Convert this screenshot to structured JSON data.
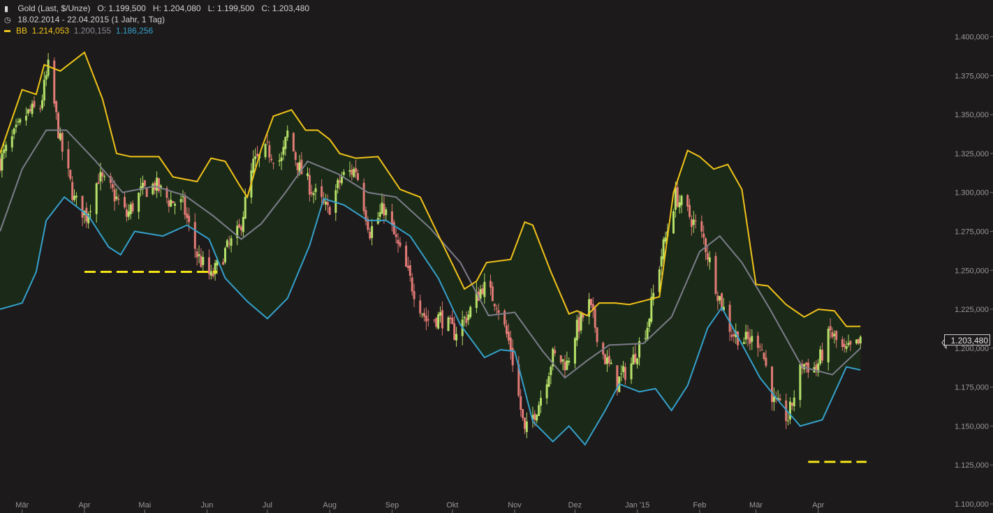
{
  "header": {
    "icon": "bar-chart-icon",
    "instrument": "Gold (Last, $/Unze)",
    "o_label": "O:",
    "o": "1.199,500",
    "h_label": "H:",
    "h": "1.204,080",
    "l_label": "L:",
    "l": "1.199,500",
    "c_label": "C:",
    "c": "1.203,480",
    "range_icon": "clock-icon",
    "range": "18.02.2014 - 22.04.2015 (1 Jahr, 1 Tag)",
    "bb_label": "BB",
    "bb_upper": "1.214,053",
    "bb_mid": "1.200,155",
    "bb_lower": "1.186,256"
  },
  "price_tag": "1.203,480",
  "colors": {
    "background": "#1c1a1a",
    "band_fill": "#1b2a18",
    "upper_band": "#f2c31a",
    "middle_band": "#7c7c8a",
    "lower_band": "#35a0cc",
    "up_candle": "#b6e068",
    "down_candle": "#e27a76",
    "dashed_level": "#f4e415"
  },
  "chart_data": {
    "type": "candlestick",
    "y_axis": {
      "side": "right",
      "ylim": [
        1100000,
        1407000
      ],
      "ticks": [
        1400000,
        1375000,
        1350000,
        1325000,
        1300000,
        1275000,
        1250000,
        1225000,
        1200000,
        1175000,
        1150000,
        1125000,
        1100000
      ],
      "tick_labels": [
        "1.400,000",
        "1.375,000",
        "1.350,000",
        "1.325,000",
        "1.300,000",
        "1.275,000",
        "1.250,000",
        "1.225,000",
        "1.200,000",
        "1.175,000",
        "1.150,000",
        "1.125,000",
        "1.100,000"
      ]
    },
    "x_axis": {
      "start_date": "2014-02-18",
      "end_date": "2015-04-22",
      "month_ticks": [
        {
          "date": "2014-03-01",
          "label": "Mär"
        },
        {
          "date": "2014-04-01",
          "label": "Apr"
        },
        {
          "date": "2014-05-01",
          "label": "Mai"
        },
        {
          "date": "2014-06-01",
          "label": "Jun"
        },
        {
          "date": "2014-07-01",
          "label": "Jul"
        },
        {
          "date": "2014-08-01",
          "label": "Aug"
        },
        {
          "date": "2014-09-01",
          "label": "Sep"
        },
        {
          "date": "2014-10-01",
          "label": "Okt"
        },
        {
          "date": "2014-11-01",
          "label": "Nov"
        },
        {
          "date": "2014-12-01",
          "label": "Dez"
        },
        {
          "date": "2015-01-01",
          "label": "Jan '15"
        },
        {
          "date": "2015-02-01",
          "label": "Feb"
        },
        {
          "date": "2015-03-01",
          "label": "Mär"
        },
        {
          "date": "2015-04-01",
          "label": "Apr"
        }
      ]
    },
    "close_series": [
      [
        "2014-02-18",
        1320
      ],
      [
        "2014-02-25",
        1336
      ],
      [
        "2014-03-03",
        1350
      ],
      [
        "2014-03-10",
        1355
      ],
      [
        "2014-03-14",
        1380
      ],
      [
        "2014-03-20",
        1332
      ],
      [
        "2014-03-27",
        1295
      ],
      [
        "2014-04-02",
        1285
      ],
      [
        "2014-04-08",
        1310
      ],
      [
        "2014-04-15",
        1300
      ],
      [
        "2014-04-22",
        1285
      ],
      [
        "2014-04-29",
        1300
      ],
      [
        "2014-05-06",
        1305
      ],
      [
        "2014-05-13",
        1295
      ],
      [
        "2014-05-20",
        1292
      ],
      [
        "2014-05-27",
        1260
      ],
      [
        "2014-06-03",
        1245
      ],
      [
        "2014-06-10",
        1262
      ],
      [
        "2014-06-17",
        1275
      ],
      [
        "2014-06-24",
        1318
      ],
      [
        "2014-07-01",
        1327
      ],
      [
        "2014-07-08",
        1320
      ],
      [
        "2014-07-11",
        1338
      ],
      [
        "2014-07-17",
        1315
      ],
      [
        "2014-07-24",
        1300
      ],
      [
        "2014-07-31",
        1288
      ],
      [
        "2014-08-07",
        1310
      ],
      [
        "2014-08-14",
        1315
      ],
      [
        "2014-08-21",
        1275
      ],
      [
        "2014-08-28",
        1290
      ],
      [
        "2014-09-04",
        1265
      ],
      [
        "2014-09-11",
        1240
      ],
      [
        "2014-09-18",
        1218
      ],
      [
        "2014-09-25",
        1220
      ],
      [
        "2014-10-02",
        1210
      ],
      [
        "2014-10-09",
        1222
      ],
      [
        "2014-10-16",
        1240
      ],
      [
        "2014-10-23",
        1230
      ],
      [
        "2014-10-30",
        1200
      ],
      [
        "2014-11-06",
        1145
      ],
      [
        "2014-11-13",
        1165
      ],
      [
        "2014-11-20",
        1195
      ],
      [
        "2014-11-27",
        1190
      ],
      [
        "2014-12-01",
        1210
      ],
      [
        "2014-12-08",
        1228
      ],
      [
        "2014-12-15",
        1196
      ],
      [
        "2014-12-22",
        1178
      ],
      [
        "2014-12-29",
        1190
      ],
      [
        "2015-01-06",
        1215
      ],
      [
        "2015-01-13",
        1260
      ],
      [
        "2015-01-20",
        1298
      ],
      [
        "2015-01-27",
        1285
      ],
      [
        "2015-02-03",
        1270
      ],
      [
        "2015-02-10",
        1236
      ],
      [
        "2015-02-17",
        1210
      ],
      [
        "2015-02-24",
        1205
      ],
      [
        "2015-03-03",
        1205
      ],
      [
        "2015-03-10",
        1165
      ],
      [
        "2015-03-17",
        1155
      ],
      [
        "2015-03-24",
        1190
      ],
      [
        "2015-03-31",
        1187
      ],
      [
        "2015-04-07",
        1210
      ],
      [
        "2015-04-14",
        1197
      ],
      [
        "2015-04-22",
        1203
      ]
    ],
    "bollinger": {
      "upper": [
        [
          "2014-02-18",
          1325
        ],
        [
          "2014-03-01",
          1366
        ],
        [
          "2014-03-08",
          1363
        ],
        [
          "2014-03-12",
          1382
        ],
        [
          "2014-03-20",
          1378
        ],
        [
          "2014-04-01",
          1390
        ],
        [
          "2014-04-10",
          1360
        ],
        [
          "2014-04-17",
          1325
        ],
        [
          "2014-04-24",
          1323
        ],
        [
          "2014-05-08",
          1323
        ],
        [
          "2014-05-15",
          1310
        ],
        [
          "2014-05-27",
          1307
        ],
        [
          "2014-06-03",
          1322
        ],
        [
          "2014-06-10",
          1320
        ],
        [
          "2014-06-17",
          1305
        ],
        [
          "2014-06-21",
          1297
        ],
        [
          "2014-06-28",
          1328
        ],
        [
          "2014-07-04",
          1349
        ],
        [
          "2014-07-13",
          1353
        ],
        [
          "2014-07-20",
          1340
        ],
        [
          "2014-07-26",
          1340
        ],
        [
          "2014-08-01",
          1334
        ],
        [
          "2014-08-06",
          1325
        ],
        [
          "2014-08-14",
          1322
        ],
        [
          "2014-08-25",
          1323
        ],
        [
          "2014-09-05",
          1302
        ],
        [
          "2014-09-15",
          1297
        ],
        [
          "2014-09-25",
          1270
        ],
        [
          "2014-10-07",
          1238
        ],
        [
          "2014-10-13",
          1243
        ],
        [
          "2014-10-18",
          1255
        ],
        [
          "2014-10-30",
          1257
        ],
        [
          "2014-11-06",
          1281
        ],
        [
          "2014-11-10",
          1279
        ],
        [
          "2014-11-19",
          1249
        ],
        [
          "2014-11-28",
          1222
        ],
        [
          "2014-12-02",
          1224
        ],
        [
          "2014-12-07",
          1221
        ],
        [
          "2014-12-13",
          1229
        ],
        [
          "2014-12-21",
          1229
        ],
        [
          "2014-12-28",
          1228
        ],
        [
          "2015-01-03",
          1230
        ],
        [
          "2015-01-12",
          1233
        ],
        [
          "2015-01-19",
          1300
        ],
        [
          "2015-01-26",
          1327
        ],
        [
          "2015-02-01",
          1323
        ],
        [
          "2015-02-08",
          1315
        ],
        [
          "2015-02-15",
          1318
        ],
        [
          "2015-02-22",
          1302
        ],
        [
          "2015-03-01",
          1241
        ],
        [
          "2015-03-07",
          1240
        ],
        [
          "2015-03-16",
          1228
        ],
        [
          "2015-03-25",
          1220
        ],
        [
          "2015-04-01",
          1225
        ],
        [
          "2015-04-09",
          1224
        ],
        [
          "2015-04-15",
          1214
        ],
        [
          "2015-04-22",
          1214
        ]
      ],
      "middle": [
        [
          "2014-02-18",
          1275
        ],
        [
          "2014-03-01",
          1315
        ],
        [
          "2014-03-13",
          1340
        ],
        [
          "2014-03-23",
          1340
        ],
        [
          "2014-04-06",
          1321
        ],
        [
          "2014-04-20",
          1300
        ],
        [
          "2014-05-06",
          1304
        ],
        [
          "2014-05-21",
          1298
        ],
        [
          "2014-06-04",
          1285
        ],
        [
          "2014-06-18",
          1270
        ],
        [
          "2014-06-28",
          1280
        ],
        [
          "2014-07-10",
          1300
        ],
        [
          "2014-07-21",
          1320
        ],
        [
          "2014-08-05",
          1312
        ],
        [
          "2014-08-20",
          1300
        ],
        [
          "2014-09-03",
          1297
        ],
        [
          "2014-09-20",
          1277
        ],
        [
          "2014-10-05",
          1255
        ],
        [
          "2014-10-19",
          1221
        ],
        [
          "2014-11-01",
          1223
        ],
        [
          "2014-11-15",
          1198
        ],
        [
          "2014-11-26",
          1181
        ],
        [
          "2014-12-07",
          1192
        ],
        [
          "2014-12-18",
          1202
        ],
        [
          "2015-01-04",
          1203
        ],
        [
          "2015-01-18",
          1220
        ],
        [
          "2015-02-01",
          1262
        ],
        [
          "2015-02-11",
          1272
        ],
        [
          "2015-02-22",
          1255
        ],
        [
          "2015-03-08",
          1225
        ],
        [
          "2015-03-24",
          1188
        ],
        [
          "2015-04-08",
          1183
        ],
        [
          "2015-04-22",
          1200
        ]
      ],
      "lower": [
        [
          "2014-02-18",
          1225
        ],
        [
          "2014-03-01",
          1229
        ],
        [
          "2014-03-08",
          1249
        ],
        [
          "2014-03-13",
          1282
        ],
        [
          "2014-03-22",
          1297
        ],
        [
          "2014-04-03",
          1285
        ],
        [
          "2014-04-13",
          1265
        ],
        [
          "2014-04-19",
          1260
        ],
        [
          "2014-04-26",
          1275
        ],
        [
          "2014-05-10",
          1272
        ],
        [
          "2014-05-22",
          1279
        ],
        [
          "2014-06-02",
          1270
        ],
        [
          "2014-06-10",
          1245
        ],
        [
          "2014-06-21",
          1230
        ],
        [
          "2014-07-01",
          1219
        ],
        [
          "2014-07-11",
          1232
        ],
        [
          "2014-07-22",
          1266
        ],
        [
          "2014-07-29",
          1296
        ],
        [
          "2014-08-08",
          1292
        ],
        [
          "2014-08-20",
          1282
        ],
        [
          "2014-08-29",
          1282
        ],
        [
          "2014-09-10",
          1272
        ],
        [
          "2014-09-24",
          1245
        ],
        [
          "2014-10-05",
          1215
        ],
        [
          "2014-10-17",
          1194
        ],
        [
          "2014-10-25",
          1199
        ],
        [
          "2014-11-01",
          1198
        ],
        [
          "2014-11-10",
          1153
        ],
        [
          "2014-11-20",
          1140
        ],
        [
          "2014-11-28",
          1150
        ],
        [
          "2014-12-06",
          1138
        ],
        [
          "2014-12-16",
          1160
        ],
        [
          "2014-12-23",
          1177
        ],
        [
          "2015-01-02",
          1172
        ],
        [
          "2015-01-10",
          1174
        ],
        [
          "2015-01-18",
          1160
        ],
        [
          "2015-01-26",
          1176
        ],
        [
          "2015-02-05",
          1213
        ],
        [
          "2015-02-12",
          1226
        ],
        [
          "2015-02-21",
          1205
        ],
        [
          "2015-03-03",
          1181
        ],
        [
          "2015-03-13",
          1165
        ],
        [
          "2015-03-23",
          1150
        ],
        [
          "2015-04-03",
          1154
        ],
        [
          "2015-04-15",
          1188
        ],
        [
          "2015-04-22",
          1186
        ]
      ]
    },
    "reference_levels": [
      {
        "value": 1249000,
        "from": "2014-04-01",
        "to": "2014-06-06"
      },
      {
        "value": 1127000,
        "from": "2015-03-27",
        "to": "2015-04-25"
      }
    ]
  }
}
